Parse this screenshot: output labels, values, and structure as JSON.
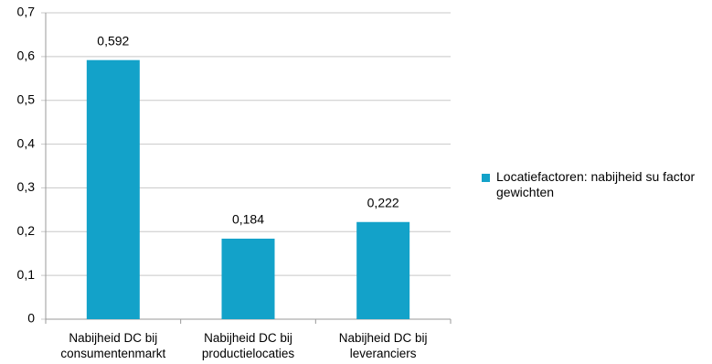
{
  "chart_data": {
    "type": "bar",
    "categories": [
      "Nabijheid DC bij consumentenmarkt",
      "Nabijheid DC bij productielocaties",
      "Nabijheid DC bij leveranciers"
    ],
    "series": [
      {
        "name": "Locatiefactoren: nabijheid su factor gewichten",
        "color": "#13a2c9",
        "values": [
          0.592,
          0.184,
          0.222
        ],
        "value_labels": [
          "0,592",
          "0,184",
          "0,222"
        ]
      }
    ],
    "ylim": [
      0,
      0.7
    ],
    "yticks": [
      0,
      {
        "value": 0.1,
        "label": "0,1"
      },
      {
        "value": 0.2,
        "label": "0,2"
      },
      {
        "value": 0.3,
        "label": "0,3"
      },
      {
        "value": 0.4,
        "label": "0,4"
      },
      {
        "value": 0.5,
        "label": "0,5"
      },
      {
        "value": 0.6,
        "label": "0,6"
      },
      {
        "value": 0.7,
        "label": "0,7"
      }
    ],
    "grid": true,
    "legend": "right"
  }
}
